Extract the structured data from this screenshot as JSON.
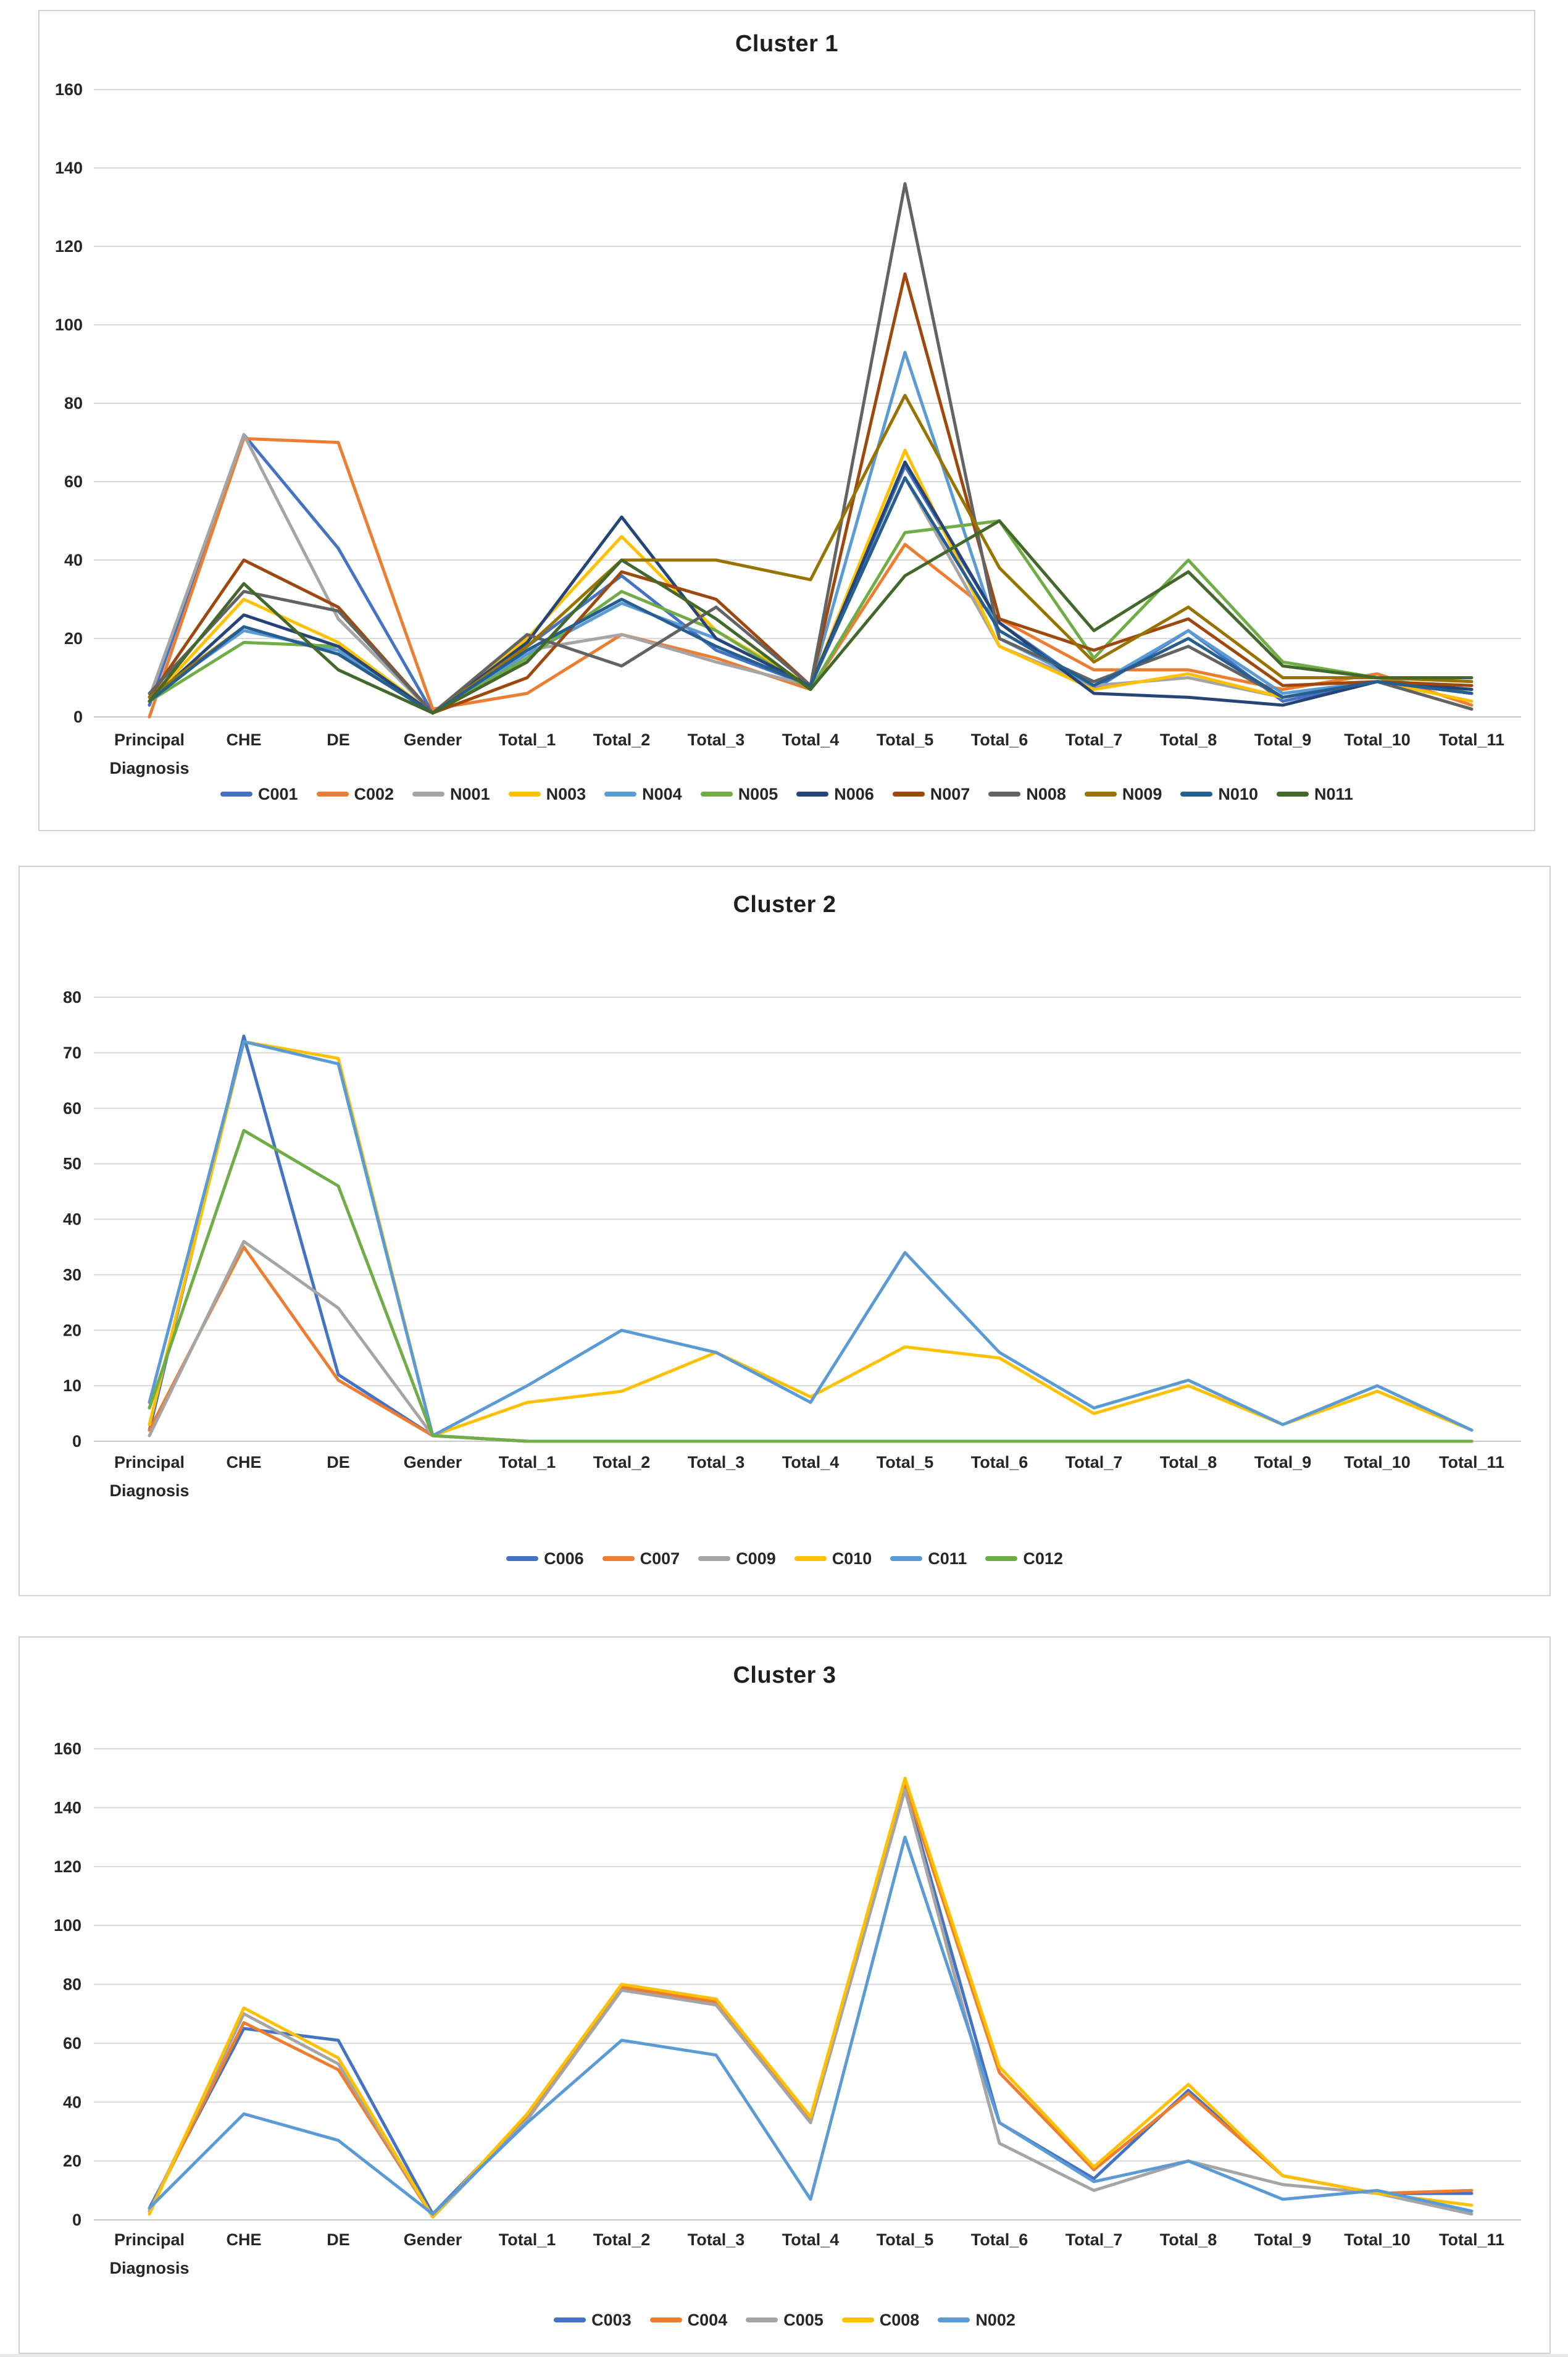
{
  "figure": {
    "description": "Three stacked Excel-style multi-series line charts comparing attribute profiles of clusters",
    "background_color": "#ffffff",
    "gridline_color": "#d9d9d9",
    "axis_line_color": "#c8c8c8",
    "text_color": "#262626"
  },
  "chart_data": [
    {
      "type": "line",
      "title": "Cluster 1",
      "xlabel": "",
      "ylabel": "",
      "categories": [
        "Principal Diagnosis",
        "CHE",
        "DE",
        "Gender",
        "Total_1",
        "Total_2",
        "Total_3",
        "Total_4",
        "Total_5",
        "Total_6",
        "Total_7",
        "Total_8",
        "Total_9",
        "Total_10",
        "Total_11"
      ],
      "ylim": [
        0,
        160
      ],
      "ytick_step": 20,
      "yticks": [
        0,
        20,
        40,
        60,
        80,
        100,
        120,
        140,
        160
      ],
      "grid": true,
      "legend_position": "bottom",
      "series": [
        {
          "name": "C001",
          "color": "#4472C4",
          "values": [
            3,
            72,
            43,
            1,
            18,
            36,
            17,
            8,
            64,
            24,
            7,
            22,
            4,
            9,
            7
          ]
        },
        {
          "name": "C002",
          "color": "#ED7D31",
          "values": [
            0,
            71,
            70,
            2,
            6,
            21,
            15,
            7,
            44,
            25,
            12,
            12,
            7,
            11,
            3
          ]
        },
        {
          "name": "N001",
          "color": "#A5A5A5",
          "values": [
            5,
            72,
            25,
            1,
            17,
            21,
            14,
            8,
            61,
            18,
            8,
            10,
            5,
            9,
            2
          ]
        },
        {
          "name": "N003",
          "color": "#FFC000",
          "values": [
            4,
            30,
            19,
            1,
            20,
            46,
            22,
            8,
            68,
            18,
            7,
            11,
            5,
            9,
            4
          ]
        },
        {
          "name": "N004",
          "color": "#5B9BD5",
          "values": [
            5,
            22,
            17,
            1,
            16,
            29,
            20,
            8,
            93,
            20,
            8,
            22,
            6,
            9,
            6
          ]
        },
        {
          "name": "N005",
          "color": "#70AD47",
          "values": [
            4,
            19,
            18,
            1,
            15,
            32,
            22,
            7,
            47,
            50,
            15,
            40,
            14,
            10,
            6
          ]
        },
        {
          "name": "N006",
          "color": "#264478",
          "values": [
            4,
            26,
            18,
            1,
            19,
            51,
            20,
            8,
            65,
            24,
            6,
            5,
            3,
            9,
            7
          ]
        },
        {
          "name": "N007",
          "color": "#9E480E",
          "values": [
            5,
            40,
            28,
            1,
            10,
            37,
            30,
            8,
            113,
            25,
            17,
            25,
            8,
            9,
            8
          ]
        },
        {
          "name": "N008",
          "color": "#636363",
          "values": [
            6,
            32,
            27,
            1,
            21,
            13,
            28,
            8,
            136,
            20,
            9,
            18,
            5,
            9,
            2
          ]
        },
        {
          "name": "N009",
          "color": "#997300",
          "values": [
            5,
            23,
            16,
            1,
            18,
            40,
            40,
            35,
            82,
            38,
            14,
            28,
            10,
            10,
            9
          ]
        },
        {
          "name": "N010",
          "color": "#255E91",
          "values": [
            4,
            23,
            16,
            1,
            17,
            30,
            18,
            8,
            61,
            22,
            8,
            20,
            5,
            9,
            6
          ]
        },
        {
          "name": "N011",
          "color": "#43682B",
          "values": [
            4,
            34,
            12,
            1,
            14,
            40,
            25,
            7,
            36,
            50,
            22,
            37,
            13,
            10,
            10
          ]
        }
      ]
    },
    {
      "type": "line",
      "title": "Cluster 2",
      "xlabel": "",
      "ylabel": "",
      "categories": [
        "Principal Diagnosis",
        "CHE",
        "DE",
        "Gender",
        "Total_1",
        "Total_2",
        "Total_3",
        "Total_4",
        "Total_5",
        "Total_6",
        "Total_7",
        "Total_8",
        "Total_9",
        "Total_10",
        "Total_11"
      ],
      "ylim": [
        0,
        80
      ],
      "ytick_step": 10,
      "yticks": [
        0,
        10,
        20,
        30,
        40,
        50,
        60,
        70,
        80
      ],
      "grid": true,
      "legend_position": "bottom",
      "series": [
        {
          "name": "C006",
          "color": "#4472C4",
          "values": [
            2,
            73,
            12,
            1,
            0,
            0,
            0,
            0,
            0,
            0,
            0,
            0,
            0,
            0,
            0
          ]
        },
        {
          "name": "C007",
          "color": "#ED7D31",
          "values": [
            2,
            35,
            11,
            1,
            0,
            0,
            0,
            0,
            0,
            0,
            0,
            0,
            0,
            0,
            0
          ]
        },
        {
          "name": "C009",
          "color": "#A5A5A5",
          "values": [
            1,
            36,
            24,
            1,
            0,
            0,
            0,
            0,
            0,
            0,
            0,
            0,
            0,
            0,
            0
          ]
        },
        {
          "name": "C010",
          "color": "#FFC000",
          "values": [
            3,
            72,
            69,
            1,
            7,
            9,
            16,
            8,
            17,
            15,
            5,
            10,
            3,
            9,
            2
          ]
        },
        {
          "name": "C011",
          "color": "#5B9BD5",
          "values": [
            7,
            72,
            68,
            1,
            10,
            20,
            16,
            7,
            34,
            16,
            6,
            11,
            3,
            10,
            2
          ]
        },
        {
          "name": "C012",
          "color": "#70AD47",
          "values": [
            6,
            56,
            46,
            1,
            0,
            0,
            0,
            0,
            0,
            0,
            0,
            0,
            0,
            0,
            0
          ]
        }
      ]
    },
    {
      "type": "line",
      "title": "Cluster 3",
      "xlabel": "",
      "ylabel": "",
      "categories": [
        "Principal Diagnosis",
        "CHE",
        "DE",
        "Gender",
        "Total_1",
        "Total_2",
        "Total_3",
        "Total_4",
        "Total_5",
        "Total_6",
        "Total_7",
        "Total_8",
        "Total_9",
        "Total_10",
        "Total_11"
      ],
      "ylim": [
        0,
        160
      ],
      "ytick_step": 20,
      "yticks": [
        0,
        20,
        40,
        60,
        80,
        100,
        120,
        140,
        160
      ],
      "grid": true,
      "legend_position": "bottom",
      "series": [
        {
          "name": "C003",
          "color": "#4472C4",
          "values": [
            4,
            65,
            61,
            2,
            35,
            79,
            74,
            34,
            147,
            33,
            14,
            44,
            15,
            9,
            9
          ]
        },
        {
          "name": "C004",
          "color": "#ED7D31",
          "values": [
            3,
            67,
            51,
            1,
            35,
            79,
            74,
            34,
            148,
            50,
            17,
            43,
            15,
            9,
            10
          ]
        },
        {
          "name": "C005",
          "color": "#A5A5A5",
          "values": [
            3,
            70,
            53,
            1,
            34,
            78,
            73,
            33,
            146,
            26,
            10,
            20,
            12,
            9,
            2
          ]
        },
        {
          "name": "C008",
          "color": "#FFC000",
          "values": [
            2,
            72,
            55,
            1,
            36,
            80,
            75,
            35,
            150,
            52,
            18,
            46,
            15,
            9,
            5
          ]
        },
        {
          "name": "N002",
          "color": "#5B9BD5",
          "values": [
            4,
            36,
            27,
            2,
            33,
            61,
            56,
            7,
            130,
            33,
            13,
            20,
            7,
            10,
            3
          ]
        }
      ]
    }
  ]
}
